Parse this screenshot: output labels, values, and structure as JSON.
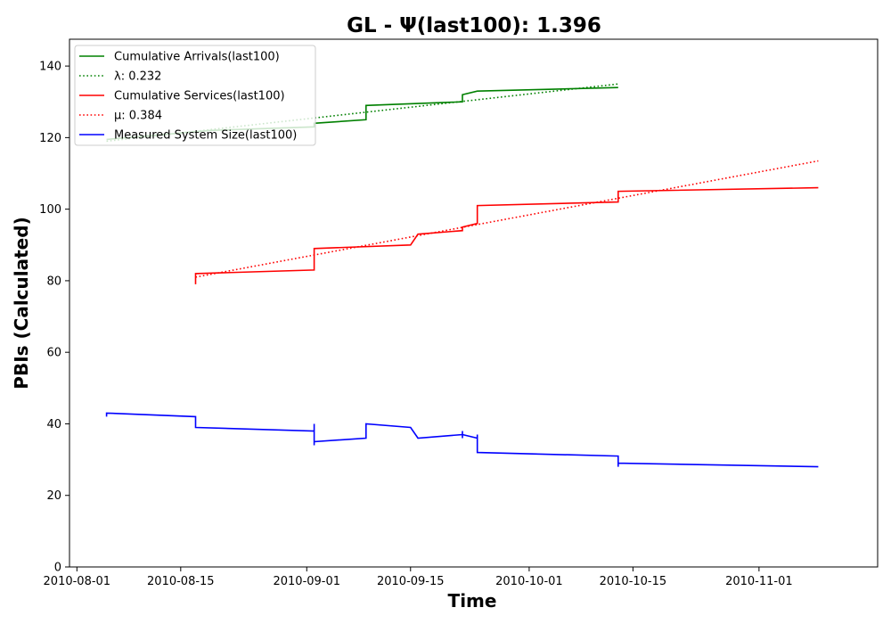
{
  "chart_data": {
    "type": "line",
    "title": "GL -  Ψ(last100): 1.396",
    "xlabel": "Time",
    "ylabel": "PBIs (Calculated)",
    "xlim": [
      "2010-07-31",
      "2010-11-17"
    ],
    "ylim": [
      0,
      147.5
    ],
    "x_ticks": [
      "2010-08-01",
      "2010-08-15",
      "2010-09-01",
      "2010-09-15",
      "2010-10-01",
      "2010-10-15",
      "2010-11-01"
    ],
    "y_ticks": [
      0,
      20,
      40,
      60,
      80,
      100,
      120,
      140
    ],
    "grid": false,
    "legend_position": "top-left",
    "series": [
      {
        "name": "Cumulative Arrivals(last100)",
        "color": "#008000",
        "style": "solid",
        "points": [
          [
            "2010-08-05",
            119.5
          ],
          [
            "2010-08-19",
            122
          ],
          [
            "2010-09-02",
            123
          ],
          [
            "2010-09-02",
            124
          ],
          [
            "2010-09-09",
            125
          ],
          [
            "2010-09-09",
            129
          ],
          [
            "2010-09-22",
            130
          ],
          [
            "2010-09-22",
            132
          ],
          [
            "2010-09-24",
            133
          ],
          [
            "2010-10-13",
            134
          ]
        ]
      },
      {
        "name": "λ: 0.232",
        "color": "#008000",
        "style": "dotted",
        "points": [
          [
            "2010-08-05",
            119
          ],
          [
            "2010-10-13",
            135
          ]
        ]
      },
      {
        "name": "Cumulative Services(last100)",
        "color": "#ff0000",
        "style": "solid",
        "points": [
          [
            "2010-08-17",
            79
          ],
          [
            "2010-08-17",
            82
          ],
          [
            "2010-09-02",
            83
          ],
          [
            "2010-09-02",
            89
          ],
          [
            "2010-09-15",
            90
          ],
          [
            "2010-09-16",
            93
          ],
          [
            "2010-09-22",
            94
          ],
          [
            "2010-09-22",
            95
          ],
          [
            "2010-09-24",
            96
          ],
          [
            "2010-09-24",
            101
          ],
          [
            "2010-10-13",
            102
          ],
          [
            "2010-10-13",
            105
          ],
          [
            "2010-11-09",
            106
          ]
        ]
      },
      {
        "name": "μ: 0.384",
        "color": "#ff0000",
        "style": "dotted",
        "points": [
          [
            "2010-08-17",
            81
          ],
          [
            "2010-11-09",
            113.5
          ]
        ]
      },
      {
        "name": "Measured System Size(last100)",
        "color": "#0000ff",
        "style": "solid",
        "points": [
          [
            "2010-08-05",
            42
          ],
          [
            "2010-08-05",
            43
          ],
          [
            "2010-08-17",
            42
          ],
          [
            "2010-08-17",
            39
          ],
          [
            "2010-09-02",
            38
          ],
          [
            "2010-09-02",
            40
          ],
          [
            "2010-09-02",
            34
          ],
          [
            "2010-09-02",
            35
          ],
          [
            "2010-09-09",
            36
          ],
          [
            "2010-09-09",
            40
          ],
          [
            "2010-09-15",
            39
          ],
          [
            "2010-09-16",
            36
          ],
          [
            "2010-09-22",
            37
          ],
          [
            "2010-09-22",
            38
          ],
          [
            "2010-09-22",
            36
          ],
          [
            "2010-09-22",
            37
          ],
          [
            "2010-09-24",
            36
          ],
          [
            "2010-09-24",
            37
          ],
          [
            "2010-09-24",
            32
          ],
          [
            "2010-10-13",
            31
          ],
          [
            "2010-10-13",
            28
          ],
          [
            "2010-10-13",
            29
          ],
          [
            "2010-11-09",
            28
          ]
        ]
      }
    ]
  }
}
